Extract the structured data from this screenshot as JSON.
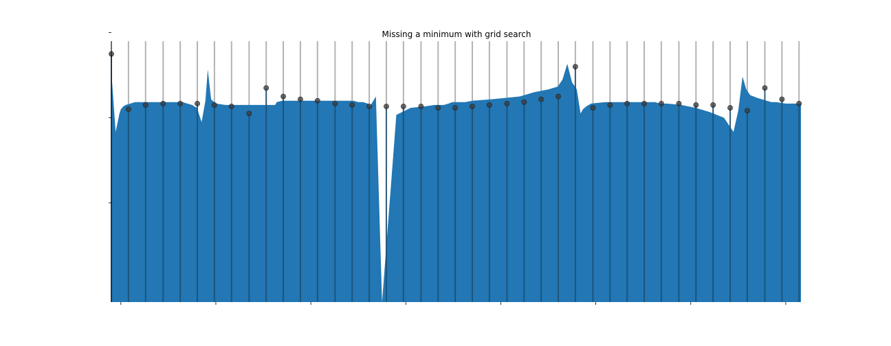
{
  "chart_data": {
    "type": "area",
    "title": "Missing a minimum with grid search",
    "xlabel": "",
    "ylabel": "",
    "grid": false,
    "tick_labels_visible": false,
    "colors": {
      "fill": "#2277b4",
      "grid_line": "#b3b3b3",
      "grid_line_over_fill": "#1c4e72",
      "points": "#3a3a3a"
    },
    "curve": {
      "x": [
        0.0,
        0.09,
        0.17,
        0.2,
        0.25,
        0.3,
        0.4,
        0.5,
        0.7,
        0.9,
        1.1,
        1.3,
        1.5,
        1.6,
        1.7,
        1.8,
        1.85,
        1.9,
        1.98,
        2.03,
        2.1,
        2.2,
        2.4,
        2.7,
        3.0,
        3.3,
        3.4,
        3.45,
        3.48,
        3.6,
        3.7,
        3.8,
        4.0,
        4.3,
        4.6,
        4.9,
        5.1,
        5.2,
        5.3,
        5.4,
        5.45,
        5.48,
        5.57,
        5.7,
        6.0,
        6.3,
        6.6,
        6.8,
        6.9,
        7.0,
        7.1,
        7.18,
        7.27,
        7.35,
        7.45,
        7.6,
        8.0,
        8.3,
        8.6,
        8.9,
        9.2,
        9.4,
        9.5,
        9.6,
        9.7,
        9.8,
        9.88,
        9.93,
        10.0,
        10.1,
        10.4,
        10.7,
        11.0,
        11.1,
        11.2,
        11.27,
        11.35,
        11.45,
        11.55,
        11.7,
        12.0,
        12.3,
        12.6,
        12.9,
        13.0,
        13.1,
        13.2,
        13.29,
        13.37,
        13.45,
        13.6,
        13.7,
        13.8,
        13.9,
        14.0,
        14.2,
        14.4,
        14.52
      ],
      "y": [
        0.92,
        0.5,
        0.63,
        0.66,
        0.68,
        0.69,
        0.7,
        0.71,
        0.71,
        0.71,
        0.71,
        0.71,
        0.71,
        0.7,
        0.69,
        0.67,
        0.62,
        0.57,
        0.72,
        0.94,
        0.73,
        0.7,
        0.69,
        0.69,
        0.69,
        0.69,
        0.69,
        0.69,
        0.71,
        0.72,
        0.72,
        0.72,
        0.72,
        0.72,
        0.72,
        0.72,
        0.72,
        0.71,
        0.71,
        0.7,
        0.68,
        0.7,
        0.75,
        -0.7,
        0.62,
        0.67,
        0.68,
        0.69,
        0.69,
        0.69,
        0.7,
        0.71,
        0.71,
        0.71,
        0.71,
        0.72,
        0.73,
        0.74,
        0.75,
        0.78,
        0.8,
        0.82,
        0.87,
        0.98,
        0.85,
        0.8,
        0.63,
        0.66,
        0.68,
        0.7,
        0.71,
        0.71,
        0.71,
        0.71,
        0.71,
        0.71,
        0.71,
        0.71,
        0.7,
        0.7,
        0.69,
        0.67,
        0.64,
        0.6,
        0.55,
        0.5,
        0.65,
        0.89,
        0.8,
        0.76,
        0.74,
        0.73,
        0.72,
        0.71,
        0.71,
        0.7,
        0.7,
        0.7
      ],
      "y_base": -0.7
    },
    "samples": {
      "x": [
        0.0,
        0.36,
        0.72,
        1.09,
        1.45,
        1.81,
        2.17,
        2.53,
        2.9,
        3.26,
        3.62,
        3.98,
        4.34,
        4.71,
        5.07,
        5.43,
        5.79,
        6.15,
        6.52,
        6.88,
        7.24,
        7.6,
        7.96,
        8.33,
        8.69,
        9.05,
        9.41,
        9.77,
        10.14,
        10.5,
        10.86,
        11.22,
        11.58,
        11.95,
        12.31,
        12.67,
        13.03,
        13.39,
        13.76,
        14.12,
        14.48
      ],
      "y": [
        1.05,
        0.66,
        0.69,
        0.7,
        0.7,
        0.7,
        0.69,
        0.68,
        0.63,
        0.81,
        0.75,
        0.73,
        0.72,
        0.7,
        0.69,
        0.68,
        0.68,
        0.68,
        0.68,
        0.67,
        0.67,
        0.68,
        0.69,
        0.7,
        0.71,
        0.73,
        0.75,
        0.96,
        0.67,
        0.69,
        0.7,
        0.7,
        0.7,
        0.7,
        0.69,
        0.69,
        0.67,
        0.65,
        0.81,
        0.73,
        0.7
      ]
    },
    "xlim": [
      0.0,
      14.52
    ],
    "ylim": [
      -0.7,
      1.14
    ],
    "x_ticks": [
      0.2,
      2.2,
      4.2,
      6.2,
      8.2,
      10.2,
      12.2,
      14.2
    ],
    "y_ticks": [
      0.0,
      0.6,
      1.2,
      1.8,
      2.4
    ]
  }
}
